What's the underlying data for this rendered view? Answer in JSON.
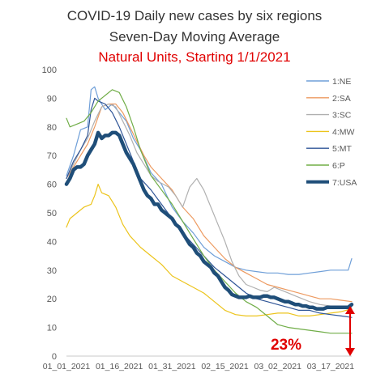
{
  "chart_data": {
    "type": "line",
    "title": "COVID-19 Daily new cases by six regions",
    "subtitle": "Seven-Day Moving Average",
    "subtitle2": "Natural Units, Starting 1/1/2021",
    "ylim": [
      0,
      100
    ],
    "yticks": [
      0,
      10,
      20,
      30,
      40,
      50,
      60,
      70,
      80,
      90,
      100
    ],
    "xlim": [
      1,
      82
    ],
    "xticks": [
      {
        "x": 1,
        "label": "01_01_2021"
      },
      {
        "x": 16,
        "label": "01_16_2021"
      },
      {
        "x": 31,
        "label": "01_31_2021"
      },
      {
        "x": 46,
        "label": "02_15_2021"
      },
      {
        "x": 61,
        "label": "03_02_2021"
      },
      {
        "x": 76,
        "label": "03_17_2021"
      }
    ],
    "grid": false,
    "legend_position": "right",
    "annotation": {
      "text": "23%",
      "color": "#e00000",
      "arrow_from": 17.5,
      "arrow_to": 0
    },
    "series": [
      {
        "name": "1:NE",
        "color": "#6f9fd8",
        "width": 1.2,
        "points": [
          [
            1,
            63
          ],
          [
            3,
            70
          ],
          [
            5,
            79
          ],
          [
            7,
            80
          ],
          [
            8,
            93
          ],
          [
            9,
            94
          ],
          [
            10,
            90
          ],
          [
            12,
            86
          ],
          [
            14,
            88
          ],
          [
            16,
            85
          ],
          [
            18,
            82
          ],
          [
            20,
            76
          ],
          [
            22,
            72
          ],
          [
            25,
            64
          ],
          [
            28,
            60
          ],
          [
            31,
            52
          ],
          [
            34,
            47
          ],
          [
            37,
            43
          ],
          [
            40,
            38
          ],
          [
            43,
            35
          ],
          [
            46,
            33
          ],
          [
            49,
            31
          ],
          [
            52,
            30
          ],
          [
            55,
            29.5
          ],
          [
            58,
            29
          ],
          [
            61,
            29
          ],
          [
            64,
            28.5
          ],
          [
            67,
            28.5
          ],
          [
            70,
            29
          ],
          [
            73,
            29.5
          ],
          [
            76,
            30
          ],
          [
            79,
            30
          ],
          [
            81,
            30
          ],
          [
            82,
            34
          ]
        ]
      },
      {
        "name": "2:SA",
        "color": "#ed9a60",
        "width": 1.2,
        "points": [
          [
            1,
            62
          ],
          [
            3,
            66
          ],
          [
            5,
            70
          ],
          [
            7,
            74
          ],
          [
            9,
            80
          ],
          [
            11,
            87
          ],
          [
            13,
            88
          ],
          [
            15,
            88
          ],
          [
            17,
            85
          ],
          [
            19,
            80
          ],
          [
            21,
            75
          ],
          [
            23,
            70
          ],
          [
            25,
            66
          ],
          [
            28,
            62
          ],
          [
            31,
            58
          ],
          [
            34,
            52
          ],
          [
            37,
            48
          ],
          [
            40,
            42
          ],
          [
            43,
            38
          ],
          [
            46,
            34
          ],
          [
            49,
            31
          ],
          [
            52,
            29
          ],
          [
            55,
            27
          ],
          [
            58,
            25
          ],
          [
            61,
            24
          ],
          [
            64,
            23
          ],
          [
            67,
            22
          ],
          [
            70,
            21
          ],
          [
            73,
            20
          ],
          [
            76,
            20
          ],
          [
            79,
            19.5
          ],
          [
            82,
            19
          ]
        ]
      },
      {
        "name": "3:SC",
        "color": "#b0b0b0",
        "width": 1.2,
        "points": [
          [
            1,
            62
          ],
          [
            3,
            67
          ],
          [
            5,
            72
          ],
          [
            7,
            76
          ],
          [
            9,
            82
          ],
          [
            11,
            87
          ],
          [
            13,
            88
          ],
          [
            15,
            87
          ],
          [
            17,
            82
          ],
          [
            19,
            77
          ],
          [
            21,
            71
          ],
          [
            23,
            67
          ],
          [
            25,
            63
          ],
          [
            27,
            61
          ],
          [
            30,
            59
          ],
          [
            32,
            56
          ],
          [
            34,
            52
          ],
          [
            36,
            59
          ],
          [
            38,
            62
          ],
          [
            40,
            58
          ],
          [
            42,
            52
          ],
          [
            44,
            46
          ],
          [
            46,
            40
          ],
          [
            48,
            33
          ],
          [
            50,
            28
          ],
          [
            52,
            25
          ],
          [
            54,
            24
          ],
          [
            56,
            23
          ],
          [
            58,
            22.5
          ],
          [
            60,
            24
          ],
          [
            62,
            23
          ],
          [
            64,
            22
          ],
          [
            66,
            21
          ],
          [
            68,
            20
          ],
          [
            70,
            19
          ],
          [
            73,
            18
          ],
          [
            76,
            17.5
          ],
          [
            79,
            17
          ],
          [
            82,
            17
          ]
        ]
      },
      {
        "name": "4:MW",
        "color": "#ecc41c",
        "width": 1.2,
        "points": [
          [
            1,
            45
          ],
          [
            2,
            48
          ],
          [
            4,
            50
          ],
          [
            6,
            52
          ],
          [
            8,
            53
          ],
          [
            9,
            56
          ],
          [
            10,
            60
          ],
          [
            11,
            57
          ],
          [
            13,
            56
          ],
          [
            15,
            52
          ],
          [
            17,
            46
          ],
          [
            19,
            42
          ],
          [
            22,
            38
          ],
          [
            25,
            35
          ],
          [
            28,
            32
          ],
          [
            31,
            28
          ],
          [
            34,
            26
          ],
          [
            37,
            24
          ],
          [
            40,
            22
          ],
          [
            43,
            19
          ],
          [
            46,
            16
          ],
          [
            49,
            14.5
          ],
          [
            52,
            14
          ],
          [
            55,
            14
          ],
          [
            58,
            14.5
          ],
          [
            61,
            15
          ],
          [
            64,
            15
          ],
          [
            67,
            14
          ],
          [
            70,
            14
          ],
          [
            73,
            14.5
          ],
          [
            76,
            15
          ],
          [
            79,
            15.5
          ],
          [
            82,
            16.5
          ]
        ]
      },
      {
        "name": "5:MT",
        "color": "#2f5597",
        "width": 1.2,
        "points": [
          [
            1,
            62
          ],
          [
            3,
            68
          ],
          [
            5,
            72
          ],
          [
            7,
            77
          ],
          [
            8,
            86
          ],
          [
            9,
            90
          ],
          [
            10,
            89
          ],
          [
            12,
            88
          ],
          [
            14,
            85
          ],
          [
            16,
            80
          ],
          [
            18,
            74
          ],
          [
            20,
            68
          ],
          [
            22,
            62
          ],
          [
            25,
            58
          ],
          [
            28,
            53
          ],
          [
            31,
            48
          ],
          [
            34,
            43
          ],
          [
            37,
            39
          ],
          [
            40,
            35
          ],
          [
            43,
            31
          ],
          [
            46,
            28
          ],
          [
            49,
            25
          ],
          [
            52,
            22
          ],
          [
            55,
            20
          ],
          [
            58,
            19
          ],
          [
            61,
            18
          ],
          [
            64,
            17
          ],
          [
            67,
            16
          ],
          [
            70,
            16
          ],
          [
            73,
            15
          ],
          [
            76,
            14.5
          ],
          [
            79,
            14
          ],
          [
            82,
            13.5
          ]
        ]
      },
      {
        "name": "6:P",
        "color": "#70ad47",
        "width": 1.2,
        "points": [
          [
            1,
            83
          ],
          [
            2,
            80
          ],
          [
            4,
            81
          ],
          [
            6,
            82
          ],
          [
            8,
            85
          ],
          [
            10,
            89
          ],
          [
            12,
            91
          ],
          [
            14,
            93
          ],
          [
            16,
            92
          ],
          [
            18,
            87
          ],
          [
            20,
            80
          ],
          [
            22,
            72
          ],
          [
            25,
            63
          ],
          [
            28,
            58
          ],
          [
            31,
            53
          ],
          [
            34,
            47
          ],
          [
            37,
            41
          ],
          [
            40,
            35
          ],
          [
            43,
            30
          ],
          [
            46,
            26
          ],
          [
            49,
            22
          ],
          [
            52,
            19
          ],
          [
            55,
            17
          ],
          [
            58,
            14
          ],
          [
            61,
            11
          ],
          [
            64,
            10
          ],
          [
            67,
            9.5
          ],
          [
            70,
            9
          ],
          [
            73,
            8.5
          ],
          [
            76,
            8
          ],
          [
            79,
            8
          ],
          [
            82,
            8
          ]
        ]
      },
      {
        "name": "7:USA",
        "color": "#1f4e79",
        "width": 4.5,
        "points": [
          [
            1,
            60
          ],
          [
            2,
            62
          ],
          [
            3,
            65
          ],
          [
            4,
            66
          ],
          [
            5,
            66
          ],
          [
            6,
            67
          ],
          [
            7,
            70
          ],
          [
            8,
            72
          ],
          [
            9,
            74
          ],
          [
            10,
            78
          ],
          [
            11,
            76
          ],
          [
            12,
            77
          ],
          [
            13,
            77
          ],
          [
            14,
            78
          ],
          [
            15,
            78
          ],
          [
            16,
            77
          ],
          [
            17,
            74
          ],
          [
            18,
            71
          ],
          [
            19,
            69
          ],
          [
            20,
            67
          ],
          [
            21,
            64
          ],
          [
            22,
            61
          ],
          [
            23,
            58
          ],
          [
            24,
            56
          ],
          [
            25,
            55
          ],
          [
            26,
            53
          ],
          [
            27,
            53
          ],
          [
            28,
            51
          ],
          [
            29,
            50
          ],
          [
            30,
            49
          ],
          [
            31,
            48
          ],
          [
            32,
            46
          ],
          [
            33,
            45
          ],
          [
            34,
            43
          ],
          [
            35,
            41
          ],
          [
            36,
            39
          ],
          [
            37,
            38
          ],
          [
            38,
            36
          ],
          [
            39,
            35
          ],
          [
            40,
            33
          ],
          [
            41,
            32
          ],
          [
            42,
            31
          ],
          [
            43,
            29
          ],
          [
            44,
            28
          ],
          [
            45,
            26
          ],
          [
            46,
            24
          ],
          [
            47,
            23
          ],
          [
            48,
            21.5
          ],
          [
            49,
            21
          ],
          [
            50,
            20.5
          ],
          [
            51,
            20.5
          ],
          [
            52,
            20.5
          ],
          [
            53,
            21
          ],
          [
            54,
            20.5
          ],
          [
            55,
            20.5
          ],
          [
            56,
            20.5
          ],
          [
            57,
            21
          ],
          [
            58,
            21
          ],
          [
            59,
            20.5
          ],
          [
            60,
            20.5
          ],
          [
            61,
            20
          ],
          [
            62,
            19.5
          ],
          [
            63,
            19
          ],
          [
            64,
            19
          ],
          [
            65,
            18.5
          ],
          [
            66,
            18
          ],
          [
            67,
            18
          ],
          [
            68,
            17.5
          ],
          [
            69,
            17.5
          ],
          [
            70,
            17
          ],
          [
            71,
            17
          ],
          [
            72,
            16.5
          ],
          [
            73,
            16.5
          ],
          [
            74,
            16.5
          ],
          [
            75,
            17
          ],
          [
            76,
            17
          ],
          [
            77,
            17
          ],
          [
            78,
            17
          ],
          [
            79,
            17
          ],
          [
            80,
            17
          ],
          [
            81,
            17
          ],
          [
            82,
            18
          ]
        ]
      }
    ]
  }
}
